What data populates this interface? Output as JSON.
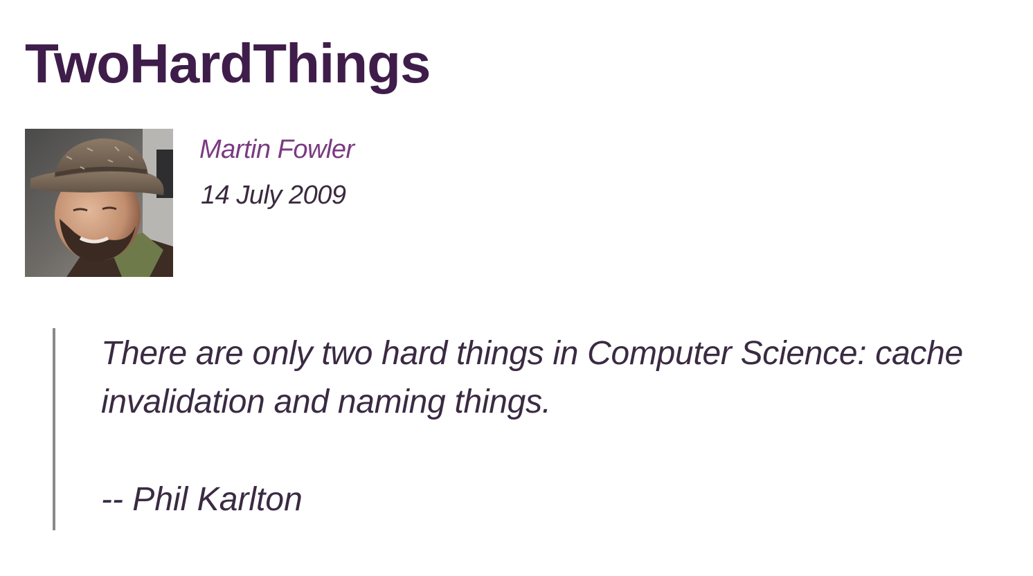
{
  "article": {
    "title": "TwoHardThings",
    "author": "Martin Fowler",
    "date": "14 July 2009"
  },
  "quote": {
    "text": "There are only two hard things in Computer Science: cache invalidation and naming things.",
    "attribution": "-- Phil Karlton"
  },
  "colors": {
    "title": "#3f1d4a",
    "author_link": "#7a3a82",
    "body_text": "#3a2a42",
    "quote_rule": "#8a8a8a"
  }
}
